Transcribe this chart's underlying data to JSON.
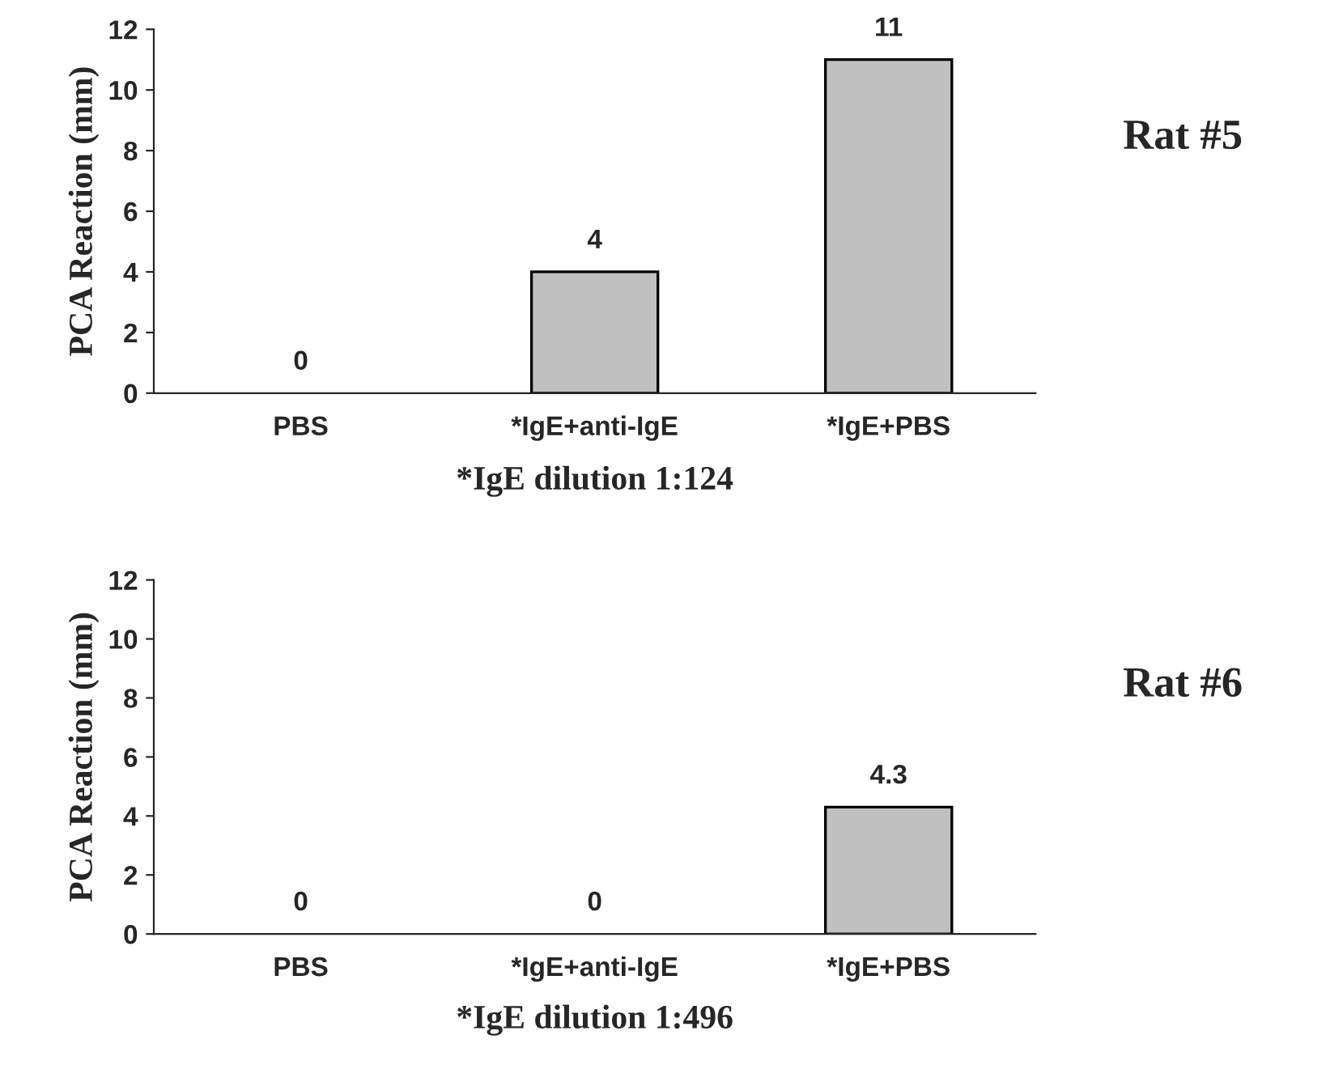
{
  "chart_data": [
    {
      "type": "bar",
      "annotations": [
        "Rat #5"
      ],
      "xlabel": "*IgE dilution 1:124",
      "ylabel": "PCA Reaction (mm)",
      "categories": [
        "PBS",
        "*IgE+anti-IgE",
        "*IgE+PBS"
      ],
      "values": [
        0,
        4,
        11
      ],
      "color": "#c0c0c0",
      "ylim": [
        0,
        12
      ],
      "yticks": [
        0,
        2,
        4,
        6,
        8,
        10,
        12
      ],
      "data_labels": true,
      "grid": false,
      "legend": false
    },
    {
      "type": "bar",
      "annotations": [
        "Rat #6"
      ],
      "xlabel": "*IgE dilution 1:496",
      "ylabel": "PCA Reaction (mm)",
      "categories": [
        "PBS",
        "*IgE+anti-IgE",
        "*IgE+PBS"
      ],
      "values": [
        0,
        0,
        4.3
      ],
      "color": "#c0c0c0",
      "ylim": [
        0,
        12
      ],
      "yticks": [
        0,
        2,
        4,
        6,
        8,
        10,
        12
      ],
      "data_labels": true,
      "grid": false,
      "legend": false
    }
  ]
}
